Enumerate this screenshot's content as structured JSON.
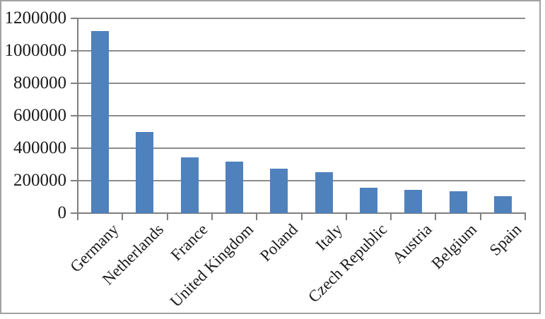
{
  "chart_data": {
    "type": "bar",
    "title": "",
    "xlabel": "",
    "ylabel": "",
    "categories": [
      "Germany",
      "Netherlands",
      "France",
      "United Kingdom",
      "Poland",
      "Italy",
      "Czech Republic",
      "Austria",
      "Belgium",
      "Spain"
    ],
    "values": [
      1120000,
      500000,
      342000,
      317000,
      276000,
      251000,
      158000,
      145000,
      134000,
      103000
    ],
    "ylim": [
      0,
      1200000
    ],
    "ytick_interval": 200000,
    "ytick_labels": [
      "0",
      "200000",
      "400000",
      "600000",
      "800000",
      "1000000",
      "1200000"
    ],
    "grid": true,
    "legend": false,
    "bar_color": "#4F81BD",
    "gridline_color": "#8C8C8C",
    "axis_color": "#7F7F7F",
    "text_color": "#1A1A1A",
    "frame_border_color": "#A2A2A2"
  }
}
